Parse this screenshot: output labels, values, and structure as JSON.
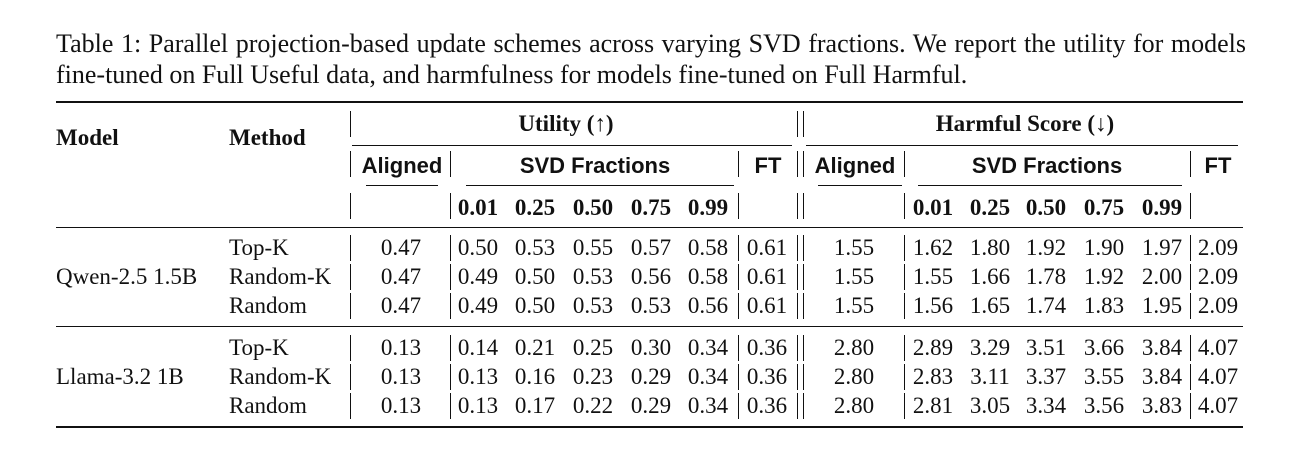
{
  "caption": {
    "label": "Table 1:",
    "text": "Parallel projection-based update schemes across varying SVD fractions. We report the utility for models fine-tuned on Full Useful data, and harmfulness for models fine-tuned on Full Harmful."
  },
  "table": {
    "col_model": "Model",
    "col_method": "Method",
    "utility": "Utility (↑)",
    "harmful": "Harmful Score (↓)",
    "aligned": "Aligned",
    "svd": "SVD Fractions",
    "ft": "FT",
    "fractions": [
      "0.01",
      "0.25",
      "0.50",
      "0.75",
      "0.99"
    ],
    "groups": [
      {
        "model": "Qwen-2.5 1.5B",
        "rows": [
          {
            "method": "Top-K",
            "u_aligned": "0.47",
            "u_svd": [
              "0.50",
              "0.53",
              "0.55",
              "0.57",
              "0.58"
            ],
            "u_ft": "0.61",
            "h_aligned": "1.55",
            "h_svd": [
              "1.62",
              "1.80",
              "1.92",
              "1.90",
              "1.97"
            ],
            "h_ft": "2.09"
          },
          {
            "method": "Random-K",
            "u_aligned": "0.47",
            "u_svd": [
              "0.49",
              "0.50",
              "0.53",
              "0.56",
              "0.58"
            ],
            "u_ft": "0.61",
            "h_aligned": "1.55",
            "h_svd": [
              "1.55",
              "1.66",
              "1.78",
              "1.92",
              "2.00"
            ],
            "h_ft": "2.09"
          },
          {
            "method": "Random",
            "u_aligned": "0.47",
            "u_svd": [
              "0.49",
              "0.50",
              "0.53",
              "0.53",
              "0.56"
            ],
            "u_ft": "0.61",
            "h_aligned": "1.55",
            "h_svd": [
              "1.56",
              "1.65",
              "1.74",
              "1.83",
              "1.95"
            ],
            "h_ft": "2.09"
          }
        ]
      },
      {
        "model": "Llama-3.2 1B",
        "rows": [
          {
            "method": "Top-K",
            "u_aligned": "0.13",
            "u_svd": [
              "0.14",
              "0.21",
              "0.25",
              "0.30",
              "0.34"
            ],
            "u_ft": "0.36",
            "h_aligned": "2.80",
            "h_svd": [
              "2.89",
              "3.29",
              "3.51",
              "3.66",
              "3.84"
            ],
            "h_ft": "4.07"
          },
          {
            "method": "Random-K",
            "u_aligned": "0.13",
            "u_svd": [
              "0.13",
              "0.16",
              "0.23",
              "0.29",
              "0.34"
            ],
            "u_ft": "0.36",
            "h_aligned": "2.80",
            "h_svd": [
              "2.83",
              "3.11",
              "3.37",
              "3.55",
              "3.84"
            ],
            "h_ft": "4.07"
          },
          {
            "method": "Random",
            "u_aligned": "0.13",
            "u_svd": [
              "0.13",
              "0.17",
              "0.22",
              "0.29",
              "0.34"
            ],
            "u_ft": "0.36",
            "h_aligned": "2.80",
            "h_svd": [
              "2.81",
              "3.05",
              "3.34",
              "3.56",
              "3.83"
            ],
            "h_ft": "4.07"
          }
        ]
      }
    ]
  }
}
